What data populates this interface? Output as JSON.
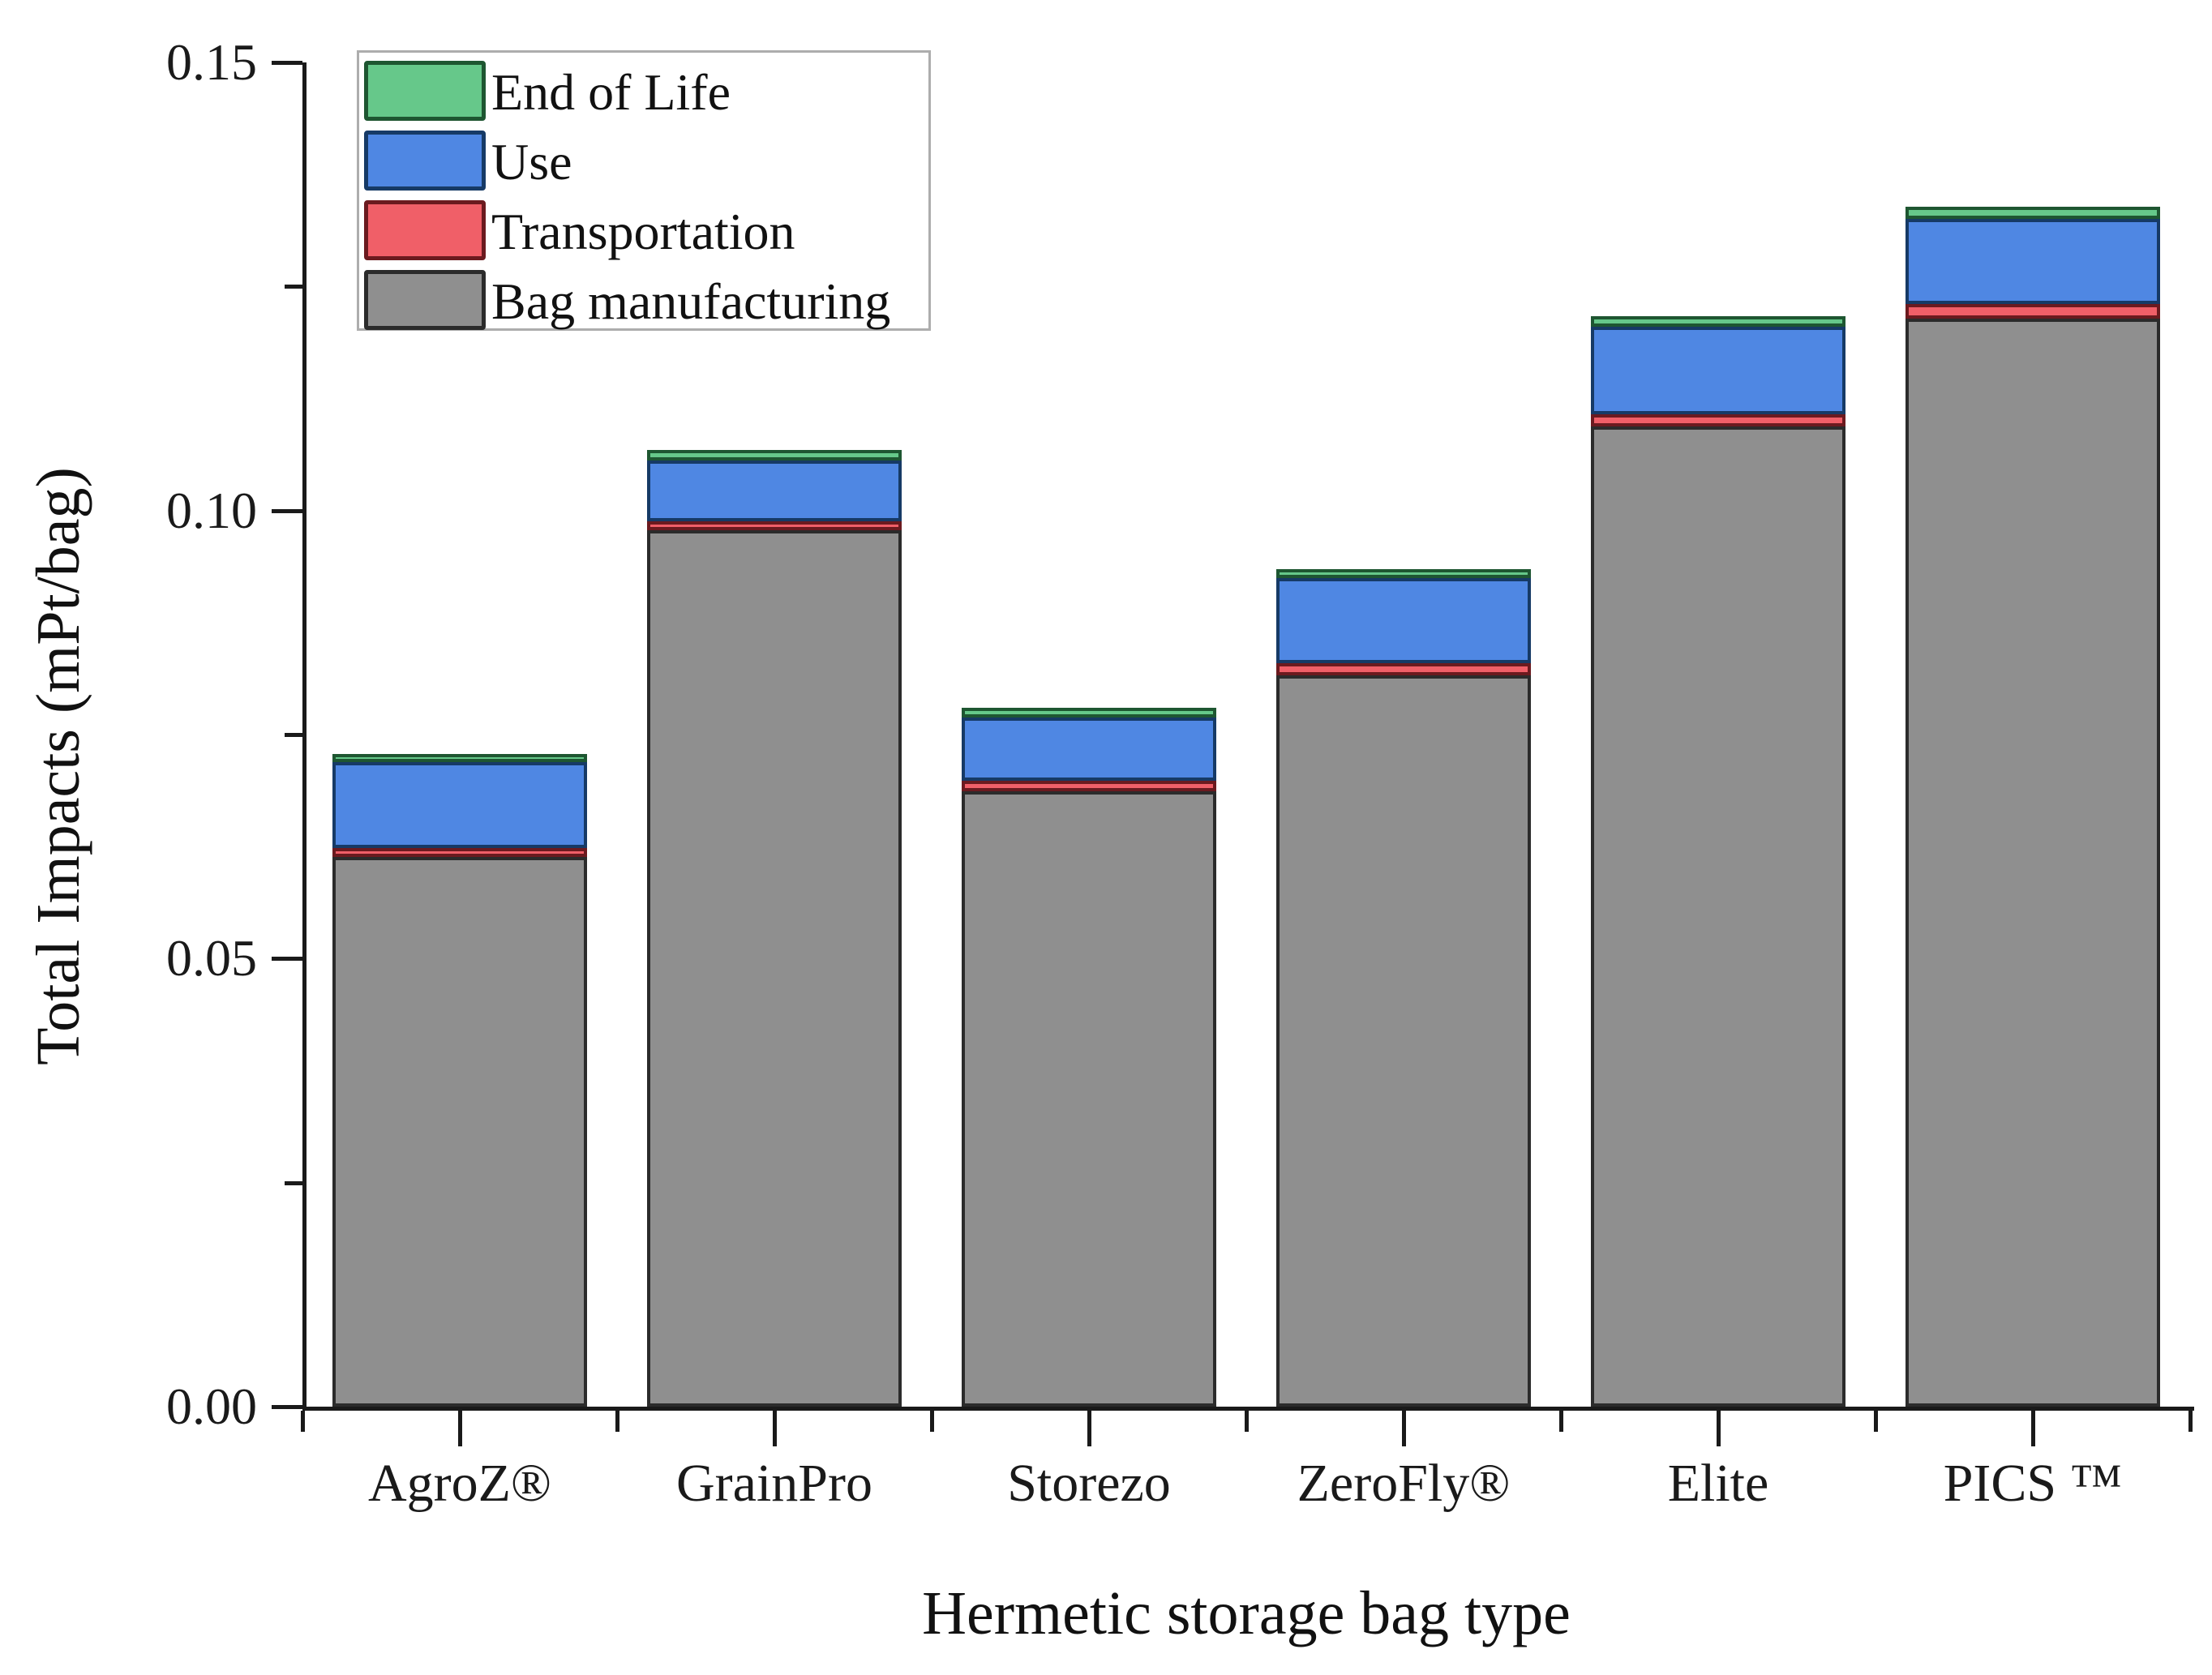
{
  "chart_data": {
    "type": "bar",
    "stacked": true,
    "title": "",
    "xlabel": "Hermetic storage bag type",
    "ylabel": "Total Impacts (mPt/bag)",
    "ylim": [
      0,
      0.15
    ],
    "grid": false,
    "categories": [
      "AgroZ®",
      "GrainPro",
      "Storezo",
      "ZeroFly®",
      "Elite",
      "PICS ™"
    ],
    "series": [
      {
        "name": "Bag manufacturing",
        "color": "#8f8f8f",
        "border": "#2b2b2b",
        "values": [
          0.0613,
          0.0978,
          0.0687,
          0.0816,
          0.1094,
          0.1214
        ]
      },
      {
        "name": "Transportation",
        "color": "#f05f68",
        "border": "#6b1a1f",
        "values": [
          0.001,
          0.001,
          0.0011,
          0.0014,
          0.0013,
          0.0016
        ]
      },
      {
        "name": "Use",
        "color": "#4f87e3",
        "border": "#163a66",
        "values": [
          0.0096,
          0.0068,
          0.0071,
          0.0095,
          0.0098,
          0.0095
        ]
      },
      {
        "name": "End of Life",
        "color": "#66c88a",
        "border": "#1e5631",
        "values": [
          0.0009,
          0.0012,
          0.0011,
          0.001,
          0.0012,
          0.0014
        ]
      }
    ],
    "totals": [
      0.0728,
      0.1068,
      0.078,
      0.0935,
      0.1217,
      0.1339
    ],
    "y_axis": {
      "major_tick_values": [
        0.0,
        0.05,
        0.1,
        0.15
      ],
      "major_tick_labels": [
        "0.00",
        "0.05",
        "0.10",
        "0.15"
      ],
      "minor_tick_values": [
        0.025,
        0.075,
        0.125
      ]
    },
    "legend": {
      "position": "top-left",
      "entries": [
        "End of Life",
        "Use",
        "Transportation",
        "Bag manufacturing"
      ]
    },
    "axis_color": "#1a1a1a",
    "legend_border_color": "#adadad",
    "background_color": "#ffffff"
  }
}
